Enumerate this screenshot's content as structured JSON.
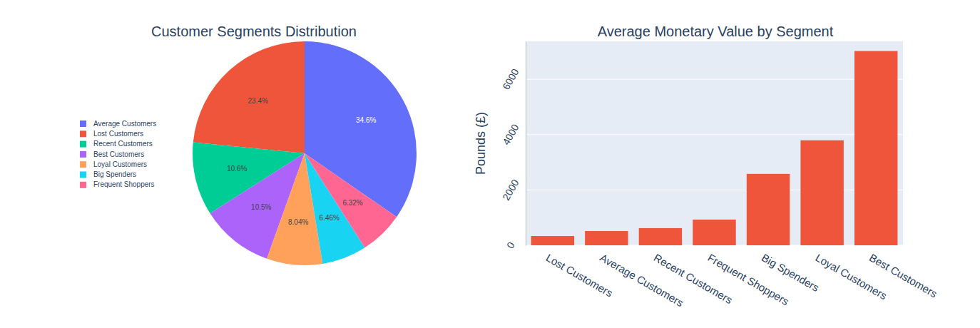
{
  "chart_data": [
    {
      "type": "pie",
      "title": "Customer Segments Distribution",
      "categories": [
        "Average Customers",
        "Lost Customers",
        "Recent Customers",
        "Best Customers",
        "Loyal Customers",
        "Big Spenders",
        "Frequent Shoppers"
      ],
      "values": [
        34.6,
        23.4,
        10.6,
        10.5,
        8.04,
        6.46,
        6.32
      ],
      "value_labels": [
        "34.6%",
        "23.4%",
        "10.6%",
        "10.5%",
        "8.04%",
        "6.46%",
        "6.32%"
      ],
      "colors": [
        "#636efa",
        "#EF553B",
        "#00cc96",
        "#ab63fa",
        "#FFA15A",
        "#19d3f3",
        "#FF6692"
      ],
      "data_labels": true,
      "legend": "left"
    },
    {
      "type": "bar",
      "title": "Average Monetary Value by Segment",
      "y_label": "Pounds (£)",
      "categories": [
        "Lost Customers",
        "Average Customers",
        "Recent Customers",
        "Frequent Shoppers",
        "Big Spenders",
        "Loyal Customers",
        "Best Customers"
      ],
      "values": [
        335,
        516,
        620,
        929,
        2581,
        3794,
        7020
      ],
      "color": "#EF553B",
      "ylim": [
        0,
        7370
      ],
      "yticks": [
        0,
        2000,
        4000,
        6000
      ],
      "grid": true
    }
  ]
}
